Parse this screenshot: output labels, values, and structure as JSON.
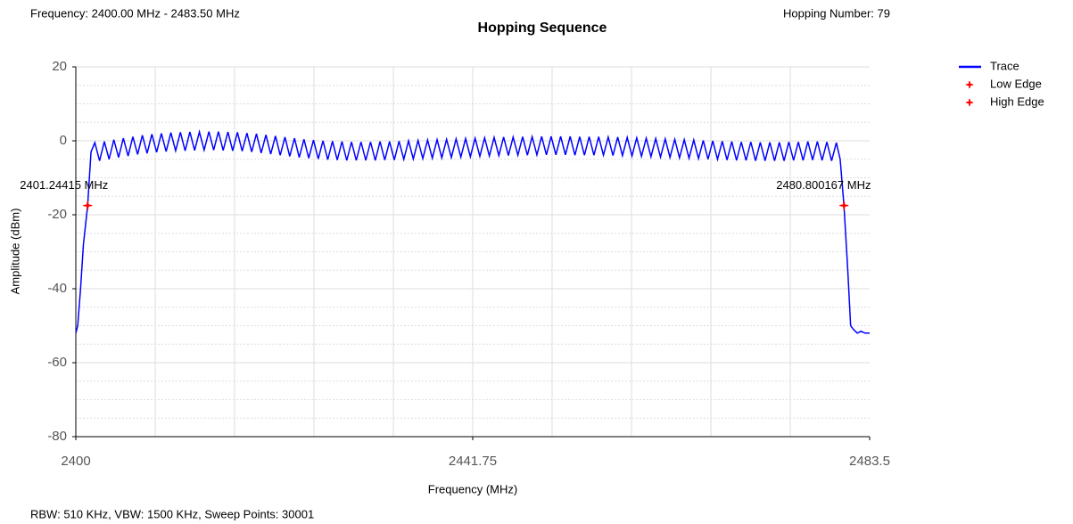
{
  "chart_data": {
    "type": "line",
    "title": "Hopping Sequence",
    "header_left": "Frequency: 2400.00 MHz - 2483.50 MHz",
    "header_right": "Hopping Number: 79",
    "footer": "RBW: 510 KHz,  VBW: 1500 KHz,  Sweep Points: 30001",
    "xlabel": "Frequency (MHz)",
    "ylabel": "Amplitude (dBm)",
    "xlim": [
      2400,
      2483.5
    ],
    "ylim": [
      -80,
      20
    ],
    "xticks": [
      2400,
      2441.75,
      2483.5
    ],
    "yticks": [
      -80,
      -60,
      -40,
      -20,
      0,
      20
    ],
    "xgrid": [
      2408.35,
      2416.7,
      2425.05,
      2433.4,
      2441.75,
      2450.1,
      2458.45,
      2466.8,
      2475.15
    ],
    "yminor": [
      -75,
      -70,
      -65,
      -55,
      -50,
      -45,
      -35,
      -30,
      -25,
      -15,
      -10,
      -5,
      5,
      10,
      15
    ],
    "grid": true,
    "legend": "right",
    "x": [
      2400,
      2400.2,
      2400.5,
      2400.8,
      2401.24415,
      2401.6,
      2402,
      2402.5,
      2403,
      2403.5,
      2404,
      2404.5,
      2405,
      2405.5,
      2406,
      2406.5,
      2407,
      2407.5,
      2408,
      2408.5,
      2409,
      2409.5,
      2410,
      2410.5,
      2411,
      2411.5,
      2412,
      2412.5,
      2413,
      2413.5,
      2414,
      2414.5,
      2415,
      2415.5,
      2416,
      2416.5,
      2417,
      2417.5,
      2418,
      2418.5,
      2419,
      2419.5,
      2420,
      2420.5,
      2421,
      2421.5,
      2422,
      2422.5,
      2423,
      2423.5,
      2424,
      2424.5,
      2425,
      2425.5,
      2426,
      2426.5,
      2427,
      2427.5,
      2428,
      2428.5,
      2429,
      2429.5,
      2430,
      2430.5,
      2431,
      2431.5,
      2432,
      2432.5,
      2433,
      2433.5,
      2434,
      2434.5,
      2435,
      2435.5,
      2436,
      2436.5,
      2437,
      2437.5,
      2438,
      2438.5,
      2439,
      2439.5,
      2440,
      2440.5,
      2441,
      2441.5,
      2442,
      2442.5,
      2443,
      2443.5,
      2444,
      2444.5,
      2445,
      2445.5,
      2446,
      2446.5,
      2447,
      2447.5,
      2448,
      2448.5,
      2449,
      2449.5,
      2450,
      2450.5,
      2451,
      2451.5,
      2452,
      2452.5,
      2453,
      2453.5,
      2454,
      2454.5,
      2455,
      2455.5,
      2456,
      2456.5,
      2457,
      2457.5,
      2458,
      2458.5,
      2459,
      2459.5,
      2460,
      2460.5,
      2461,
      2461.5,
      2462,
      2462.5,
      2463,
      2463.5,
      2464,
      2464.5,
      2465,
      2465.5,
      2466,
      2466.5,
      2467,
      2467.5,
      2468,
      2468.5,
      2469,
      2469.5,
      2470,
      2470.5,
      2471,
      2471.5,
      2472,
      2472.5,
      2473,
      2473.5,
      2474,
      2474.5,
      2475,
      2475.5,
      2476,
      2476.5,
      2477,
      2477.5,
      2478,
      2478.5,
      2479,
      2479.5,
      2480,
      2480.4,
      2480.800167,
      2481.2,
      2481.5,
      2481.8,
      2482.2,
      2482.6,
      2483,
      2483.5
    ],
    "series": [
      {
        "name": "Trace",
        "color": "#0000ff",
        "values": [
          -52,
          -50,
          -40,
          -28,
          -17.5,
          -3,
          -0.5,
          -5.4,
          -0.2,
          -5,
          0.3,
          -4.5,
          0.7,
          -4.1,
          1.1,
          -3.7,
          1.5,
          -3.4,
          1.8,
          -3.1,
          2.0,
          -2.9,
          2.2,
          -2.7,
          2.3,
          -2.7,
          2.4,
          -2.6,
          2.4,
          -2.5,
          2.5,
          -2.5,
          2.5,
          -2.6,
          2.4,
          -2.7,
          2.3,
          -2.8,
          2.1,
          -3,
          1.9,
          -3.3,
          1.6,
          -3.6,
          1.3,
          -3.9,
          1.0,
          -4.2,
          0.7,
          -4.5,
          0.4,
          -4.7,
          0.2,
          -4.9,
          0.0,
          -5.1,
          -0.1,
          -5.2,
          -0.2,
          -5.3,
          -0.3,
          -5.3,
          -0.3,
          -5.3,
          -0.3,
          -5.3,
          -0.2,
          -5.2,
          -0.2,
          -5.2,
          -0.1,
          -5,
          0.0,
          -4.9,
          0.1,
          -4.8,
          0.2,
          -4.7,
          0.3,
          -4.6,
          0.4,
          -4.5,
          0.5,
          -4.4,
          0.6,
          -4.3,
          0.7,
          -4.2,
          0.8,
          -4.1,
          0.9,
          -4,
          1.0,
          -4,
          1.0,
          -3.9,
          1.1,
          -3.9,
          1.1,
          -3.8,
          1.2,
          -3.8,
          1.2,
          -3.8,
          1.2,
          -3.8,
          1.2,
          -3.9,
          1.1,
          -3.9,
          1.1,
          -3.9,
          1.1,
          -3.9,
          1.0,
          -4,
          1.0,
          -4,
          0.9,
          -4.1,
          0.8,
          -4.2,
          0.7,
          -4.3,
          0.6,
          -4.4,
          0.5,
          -4.5,
          0.4,
          -4.6,
          0.3,
          -4.7,
          0.2,
          -4.8,
          0.1,
          -5,
          0.0,
          -5,
          -0.1,
          -5.2,
          -0.2,
          -5.3,
          -0.3,
          -5.3,
          -0.3,
          -5.4,
          -0.4,
          -5.4,
          -0.4,
          -5.4,
          -0.4,
          -5.4,
          -0.3,
          -5.3,
          -0.3,
          -5.3,
          -0.2,
          -5.2,
          -0.2,
          -5.3,
          -0.3,
          -5.4,
          -0.5,
          -5,
          -17.5,
          -35,
          -50,
          -51,
          -52,
          -51.5,
          -52,
          -52
        ]
      }
    ],
    "markers": [
      {
        "name": "Low Edge",
        "color": "#ff0000",
        "x": 2401.24415,
        "y": -17.5,
        "label": "2401.24415 MHz"
      },
      {
        "name": "High Edge",
        "color": "#ff0000",
        "x": 2480.800167,
        "y": -17.5,
        "label": "2480.800167 MHz"
      }
    ]
  }
}
